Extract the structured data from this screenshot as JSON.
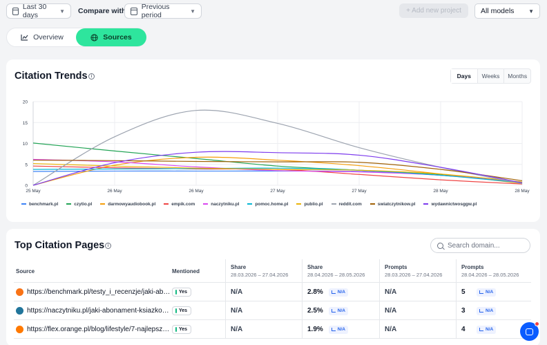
{
  "topbar": {
    "date_range": "Last 30 days",
    "compare_label": "Compare with",
    "compare_value": "Previous period",
    "add_project": "+ Add new project",
    "models": "All models"
  },
  "tabs": [
    {
      "label": "Overview",
      "active": false,
      "icon": "line-chart-icon"
    },
    {
      "label": "Sources",
      "active": true,
      "icon": "globe-icon"
    }
  ],
  "trends": {
    "title": "Citation Trends",
    "granularity": [
      "Days",
      "Weeks",
      "Months"
    ],
    "granularity_active": "Days"
  },
  "chart_data": {
    "type": "line",
    "x": [
      "25 May",
      "26 May",
      "26 May",
      "27 May",
      "27 May",
      "28 May",
      "28 May"
    ],
    "ylim": [
      0,
      20
    ],
    "yticks": [
      "0",
      "5",
      "10",
      "15",
      "20"
    ],
    "series": [
      {
        "name": "benchmark.pl",
        "color": "#3b82f6",
        "values": [
          3.3,
          3.4,
          3.4,
          3.4,
          3.3,
          2.4,
          0.8
        ]
      },
      {
        "name": "czytio.pl",
        "color": "#22a355",
        "values": [
          10.1,
          8.2,
          6.4,
          4.6,
          3.6,
          2.6,
          0.5
        ]
      },
      {
        "name": "darmowyaudiobook.pl",
        "color": "#f59e0b",
        "values": [
          0,
          4.8,
          6.7,
          6.0,
          4.7,
          2.7,
          0.4
        ]
      },
      {
        "name": "empik.com",
        "color": "#ef4444",
        "values": [
          4.6,
          4.2,
          3.9,
          3.8,
          2.6,
          1.3,
          0.3
        ]
      },
      {
        "name": "naczytniku.pl",
        "color": "#d946ef",
        "values": [
          6.2,
          5.6,
          4.4,
          3.5,
          3.2,
          2.4,
          0.7
        ]
      },
      {
        "name": "pomoc.home.pl",
        "color": "#06b6d4",
        "values": [
          3.8,
          3.9,
          4.0,
          4.1,
          3.6,
          2.4,
          0.6
        ]
      },
      {
        "name": "publio.pl",
        "color": "#eab308",
        "values": [
          5.2,
          4.6,
          4.1,
          3.8,
          3.6,
          2.7,
          0.8
        ]
      },
      {
        "name": "reddit.com",
        "color": "#9ca3af",
        "values": [
          0,
          11.6,
          17.9,
          14.8,
          9.0,
          4.3,
          0.4
        ]
      },
      {
        "name": "swiatczytnikow.pl",
        "color": "#a16207",
        "values": [
          6.0,
          5.9,
          5.7,
          5.6,
          5.5,
          3.8,
          1.1
        ]
      },
      {
        "name": "wydawnictwosggw.pl",
        "color": "#7c3aed",
        "values": [
          0,
          5.4,
          7.9,
          7.8,
          7.2,
          4.3,
          0.6
        ]
      }
    ],
    "grid": true,
    "legend": "bottom"
  },
  "pages": {
    "title": "Top Citation Pages",
    "search_placeholder": "Search domain...",
    "columns": {
      "source": "Source",
      "mentioned": "Mentioned",
      "share": "Share",
      "prompts": "Prompts",
      "period_prev": "28.03.2026 – 27.04.2026",
      "period_curr": "28.04.2026 – 28.05.2026"
    },
    "rows": [
      {
        "url": "https://benchmark.pl/testy_i_recenzje/jaki-ab…",
        "mentioned": "Yes",
        "share_prev": "N/A",
        "share_curr": "2.8%",
        "share_trend": "N/A",
        "prompts_prev": "N/A",
        "prompts_curr": "5",
        "prompts_trend": "N/A",
        "favicon_color": "#f97316",
        "favicon": "benchmark-favicon"
      },
      {
        "url": "https://naczytniku.pl/jaki-abonament-ksiazko…",
        "mentioned": "Yes",
        "share_prev": "N/A",
        "share_curr": "2.5%",
        "share_trend": "N/A",
        "prompts_prev": "N/A",
        "prompts_curr": "3",
        "prompts_trend": "N/A",
        "favicon_color": "#21759b",
        "favicon": "wordpress-favicon"
      },
      {
        "url": "https://flex.orange.pl/blog/lifestyle/7-najlepsz…",
        "mentioned": "Yes",
        "share_prev": "N/A",
        "share_curr": "1.9%",
        "share_trend": "N/A",
        "prompts_prev": "N/A",
        "prompts_curr": "4",
        "prompts_trend": "N/A",
        "favicon_color": "#ff7900",
        "favicon": "orange-favicon"
      }
    ]
  }
}
